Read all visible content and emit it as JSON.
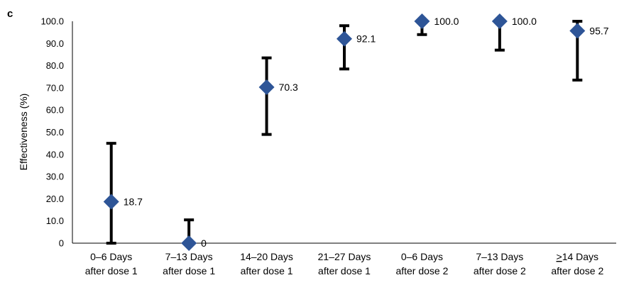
{
  "panel_label": "c",
  "chart_data": {
    "type": "scatter",
    "title": "",
    "xlabel": "",
    "ylabel": "Effectiveness (%)",
    "ylim": [
      0,
      100
    ],
    "yticks": [
      "0",
      "10.0",
      "20.0",
      "30.0",
      "40.0",
      "50.0",
      "60.0",
      "70.0",
      "80.0",
      "90.0",
      "100.0"
    ],
    "grid": false,
    "marker": "diamond",
    "marker_color": "#2e5597",
    "errorbar_color": "#000000",
    "categories": [
      {
        "line1": "0–6 Days",
        "line2": "after dose 1"
      },
      {
        "line1": "7–13 Days",
        "line2": "after dose 1"
      },
      {
        "line1": "14–20 Days",
        "line2": "after dose 1"
      },
      {
        "line1": "21–27 Days",
        "line2": "after dose 1"
      },
      {
        "line1": "0–6 Days",
        "line2": "after dose 2"
      },
      {
        "line1": "7–13 Days",
        "line2": "after dose 2"
      },
      {
        "line1": "≥14 Days",
        "line2": "after dose 2"
      }
    ],
    "values": [
      18.7,
      0,
      70.3,
      92.1,
      100.0,
      100.0,
      95.7
    ],
    "data_labels": [
      "18.7",
      "0",
      "70.3",
      "92.1",
      "100.0",
      "100.0",
      "95.7"
    ],
    "ci_lower": [
      0,
      0,
      49.0,
      78.5,
      94.0,
      87.0,
      73.5
    ],
    "ci_upper": [
      45.0,
      10.5,
      83.5,
      98.0,
      100.0,
      100.0,
      100.0
    ]
  }
}
